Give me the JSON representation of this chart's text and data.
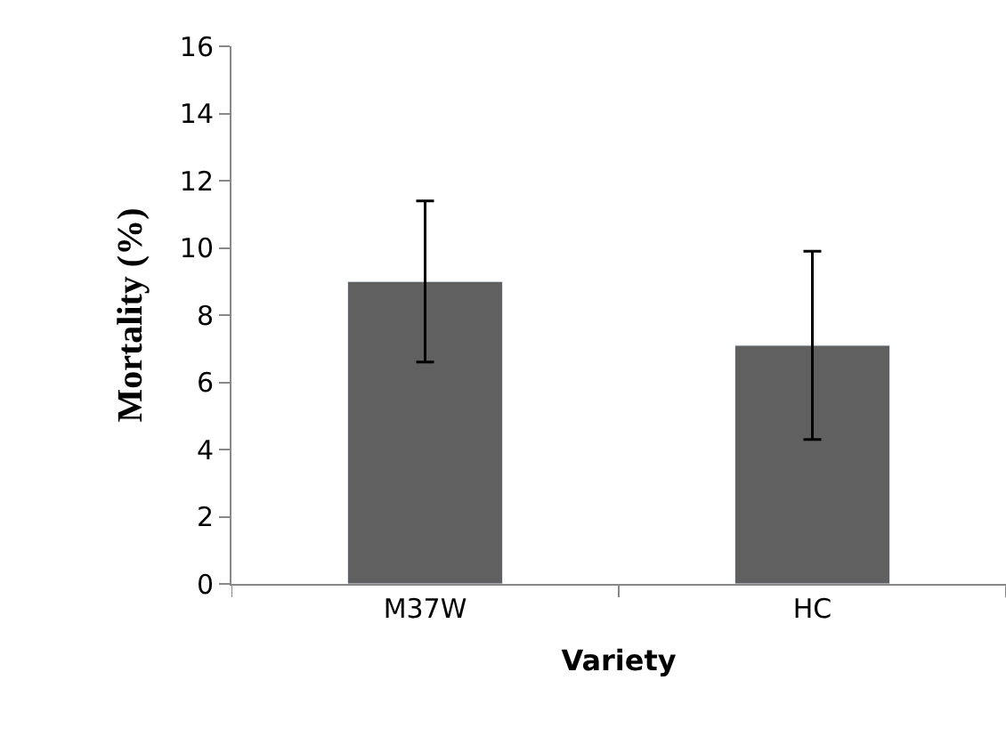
{
  "chart_data": {
    "type": "bar",
    "xlabel": "Variety",
    "ylabel": "Mortality (%)",
    "categories": [
      "M37W",
      "HC"
    ],
    "values": [
      9.0,
      7.1
    ],
    "color": "#606060",
    "errors": [
      2.4,
      2.8
    ],
    "ylim": [
      0,
      16
    ],
    "yticks": [
      0,
      2,
      4,
      6,
      8,
      10,
      12,
      14,
      16
    ]
  }
}
